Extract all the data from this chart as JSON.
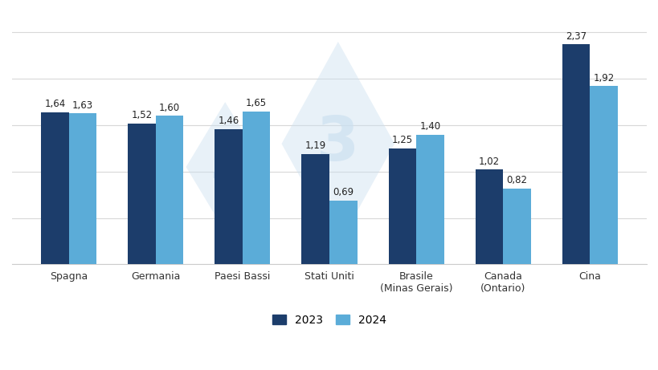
{
  "categories": [
    "Spagna",
    "Germania",
    "Paesi Bassi",
    "Stati Uniti",
    "Brasile\n(Minas Gerais)",
    "Canada\n(Ontario)",
    "Cina"
  ],
  "values_2023": [
    1.64,
    1.52,
    1.46,
    1.19,
    1.25,
    1.02,
    2.37
  ],
  "values_2024": [
    1.63,
    1.6,
    1.65,
    0.69,
    1.4,
    0.82,
    1.92
  ],
  "labels_2023": [
    "1,64",
    "1,52",
    "1,46",
    "1,19",
    "1,25",
    "1,02",
    "2,37"
  ],
  "labels_2024": [
    "1,63",
    "1,60",
    "1,65",
    "0,69",
    "1,40",
    "0,82",
    "1,92"
  ],
  "color_2023": "#1c3d6b",
  "color_2024": "#5bacd8",
  "background_color": "#ffffff",
  "ylim": [
    0,
    2.75
  ],
  "yticks": [
    0.0,
    0.5,
    1.0,
    1.5,
    2.0,
    2.5
  ],
  "legend_2023": "2023",
  "legend_2024": "2024",
  "bar_width": 0.32,
  "label_fontsize": 8.5,
  "tick_fontsize": 9,
  "legend_fontsize": 10,
  "grid_color": "#d8d8d8",
  "watermark_color": "#cce0f0"
}
